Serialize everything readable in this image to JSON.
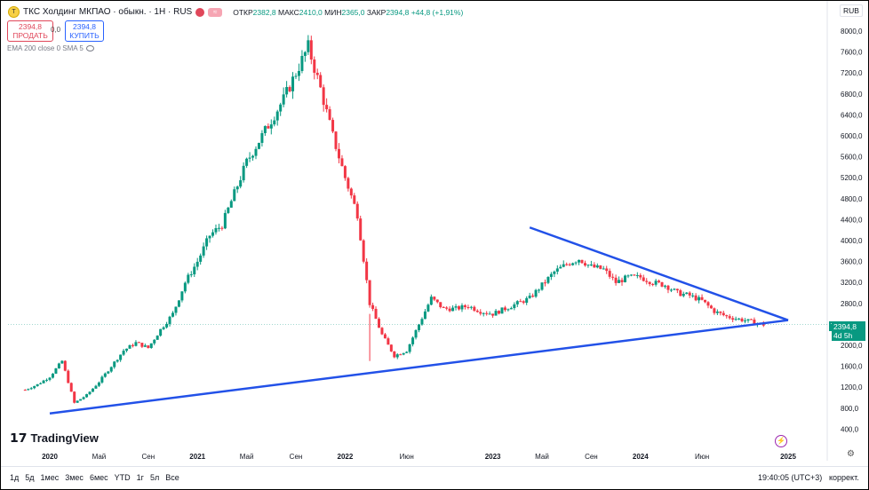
{
  "header": {
    "title": "ТКС Холдинг МКПАО · обыкн. · 1Н · RUS",
    "badge_symbol": "T",
    "badge_alert": "≈",
    "open_label": "ОТКР",
    "open_value": "2382,8",
    "high_label": "МАКС",
    "high_value": "2410,0",
    "low_label": "МИН",
    "low_value": "2365,0",
    "close_label": "ЗАКР",
    "close_value": "2394,8",
    "change": "+44,8 (+1,91%)"
  },
  "trade": {
    "sell_price": "2394,8",
    "sell_label": "ПРОДАТЬ",
    "spread": "0,0",
    "buy_price": "2394,8",
    "buy_label": "КУПИТЬ"
  },
  "indicator_label": "EMA 200 close 0 SMA 5",
  "currency": "RUB",
  "price_label": {
    "price": "2394,8",
    "countdown": "4d 5h",
    "badge": "T"
  },
  "brand": "TradingView",
  "periods": [
    "1д",
    "5д",
    "1мес",
    "3мес",
    "6мес",
    "YTD",
    "1г",
    "5л",
    "Все"
  ],
  "clock": "19:40:05 (UTC+3)",
  "correction": "коррект.",
  "colors": {
    "up": "#089981",
    "down": "#f23645",
    "trendline": "#2251e8"
  },
  "chart_data": {
    "type": "candlestick",
    "y_axis_ticks": [
      "8000,0",
      "7600,0",
      "7200,0",
      "6800,0",
      "6400,0",
      "6000,0",
      "5600,0",
      "5200,0",
      "4800,0",
      "4400,0",
      "4000,0",
      "3600,0",
      "3200,0",
      "2800,0",
      "2400,0",
      "2000,0",
      "1600,0",
      "1200,0",
      "800,0",
      "400,0"
    ],
    "ylim": [
      200,
      8250
    ],
    "x_axis_ticks": [
      "2020",
      "Май",
      "Сен",
      "2021",
      "Май",
      "Сен",
      "2022",
      "Июн",
      "2023",
      "Май",
      "Сен",
      "2024",
      "Июн",
      "2025"
    ],
    "close_series": [
      [
        "2019-11",
        1150
      ],
      [
        "2019-12",
        1250
      ],
      [
        "2020-01",
        1400
      ],
      [
        "2020-02",
        1700
      ],
      [
        "2020-03",
        900
      ],
      [
        "2020-04",
        1050
      ],
      [
        "2020-05",
        1300
      ],
      [
        "2020-06",
        1600
      ],
      [
        "2020-07",
        1900
      ],
      [
        "2020-08",
        2050
      ],
      [
        "2020-09",
        1950
      ],
      [
        "2020-10",
        2300
      ],
      [
        "2020-11",
        2600
      ],
      [
        "2020-12",
        3200
      ],
      [
        "2021-01",
        3600
      ],
      [
        "2021-02",
        4100
      ],
      [
        "2021-03",
        4300
      ],
      [
        "2021-04",
        4900
      ],
      [
        "2021-05",
        5500
      ],
      [
        "2021-06",
        5900
      ],
      [
        "2021-07",
        6300
      ],
      [
        "2021-08",
        6700
      ],
      [
        "2021-09",
        7200
      ],
      [
        "2021-10",
        7700
      ],
      [
        "2021-11",
        6900
      ],
      [
        "2021-12",
        6000
      ],
      [
        "2022-01",
        5200
      ],
      [
        "2022-02",
        4500
      ],
      [
        "2022-03",
        2800
      ],
      [
        "2022-04",
        2200
      ],
      [
        "2022-05",
        1800
      ],
      [
        "2022-06",
        1900
      ],
      [
        "2022-07",
        2400
      ],
      [
        "2022-08",
        2900
      ],
      [
        "2022-09",
        2700
      ],
      [
        "2022-10",
        2700
      ],
      [
        "2022-11",
        2750
      ],
      [
        "2022-12",
        2650
      ],
      [
        "2023-01",
        2600
      ],
      [
        "2023-02",
        2700
      ],
      [
        "2023-03",
        2800
      ],
      [
        "2023-04",
        2900
      ],
      [
        "2023-05",
        3150
      ],
      [
        "2023-06",
        3400
      ],
      [
        "2023-07",
        3550
      ],
      [
        "2023-08",
        3650
      ],
      [
        "2023-09",
        3500
      ],
      [
        "2023-10",
        3450
      ],
      [
        "2023-11",
        3200
      ],
      [
        "2023-12",
        3300
      ],
      [
        "2024-01",
        3300
      ],
      [
        "2024-02",
        3200
      ],
      [
        "2024-03",
        3150
      ],
      [
        "2024-04",
        3000
      ],
      [
        "2024-05",
        2950
      ],
      [
        "2024-06",
        2850
      ],
      [
        "2024-07",
        2650
      ],
      [
        "2024-08",
        2550
      ],
      [
        "2024-09",
        2500
      ],
      [
        "2024-10",
        2450
      ],
      [
        "2024-11",
        2394.8
      ]
    ],
    "annotations": [
      {
        "type": "trendline",
        "from": [
          "2020-01",
          700
        ],
        "to": [
          "2025-01",
          2480
        ]
      },
      {
        "type": "trendline",
        "from": [
          "2023-04",
          4250
        ],
        "to": [
          "2025-01",
          2480
        ]
      }
    ],
    "last_price": 2394.8
  }
}
